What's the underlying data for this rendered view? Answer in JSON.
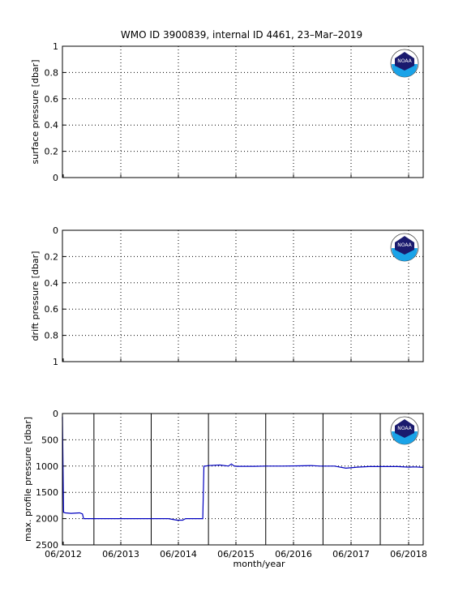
{
  "figure": {
    "title": "WMO ID 3900839, internal ID 4461, 23–Mar–2019",
    "logo_text": "NOAA"
  },
  "colors": {
    "series_line": "#0000c0",
    "axis": "#000000",
    "grid": "#000000",
    "logo_navy": "#1a1a6e",
    "logo_blue": "#1aa3e8"
  },
  "chart_data": [
    {
      "type": "line",
      "ylabel": "surface pressure [dbar]",
      "ylim": [
        0,
        1
      ],
      "y_reversed": false,
      "yticks": [
        0,
        0.2,
        0.4,
        0.6,
        0.8,
        1
      ],
      "ytick_labels": [
        "0",
        "0.2",
        "0.4",
        "0.6",
        "0.8",
        "1"
      ],
      "xticks": [
        "06/2012",
        "06/2013",
        "06/2014",
        "06/2015",
        "06/2016",
        "06/2017",
        "06/2018"
      ],
      "grid": "dotted",
      "series": []
    },
    {
      "type": "line",
      "ylabel": "drift pressure [dbar]",
      "ylim": [
        0,
        1
      ],
      "y_reversed": true,
      "yticks": [
        0,
        0.2,
        0.4,
        0.6,
        0.8,
        1
      ],
      "ytick_labels": [
        "0",
        "0.2",
        "0.4",
        "0.6",
        "0.8",
        "1"
      ],
      "xticks": [
        "06/2012",
        "06/2013",
        "06/2014",
        "06/2015",
        "06/2016",
        "06/2017",
        "06/2018"
      ],
      "grid": "dotted",
      "series": []
    },
    {
      "type": "line",
      "ylabel": "max. profile pressure [dbar]",
      "xlabel": "month/year",
      "ylim": [
        0,
        2500
      ],
      "y_reversed": true,
      "yticks": [
        0,
        500,
        1000,
        1500,
        2000,
        2500
      ],
      "ytick_labels": [
        "0",
        "500",
        "1000",
        "1500",
        "2000",
        "2500"
      ],
      "xlim": [
        2012.45,
        2018.75
      ],
      "xticks": [
        "06/2012",
        "06/2013",
        "06/2014",
        "06/2015",
        "06/2016",
        "06/2017",
        "06/2018"
      ],
      "year_boundaries": [
        2013.0,
        2014.0,
        2015.0,
        2016.0,
        2017.0,
        2018.0
      ],
      "grid": "dotted",
      "series": [
        {
          "x": [
            2012.45,
            2012.47,
            2012.5,
            2012.6,
            2012.75,
            2012.8,
            2012.82,
            2012.9,
            2013.0,
            2013.5,
            2014.0,
            2014.3,
            2014.45,
            2014.55,
            2014.6,
            2014.9,
            2014.92,
            2014.95,
            2015.0,
            2015.2,
            2015.35,
            2015.4,
            2015.45,
            2015.5,
            2015.8,
            2016.0,
            2016.3,
            2016.6,
            2016.8,
            2016.95,
            2017.0,
            2017.2,
            2017.4,
            2017.6,
            2017.8,
            2018.0,
            2018.3,
            2018.5,
            2018.6,
            2018.75
          ],
          "y": [
            60,
            1880,
            1890,
            1900,
            1890,
            1910,
            2000,
            2000,
            2000,
            2000,
            2000,
            2000,
            2030,
            2030,
            2000,
            2000,
            1000,
            1000,
            990,
            980,
            1000,
            960,
            1000,
            1005,
            1005,
            1000,
            1000,
            995,
            990,
            1000,
            1000,
            1000,
            1040,
            1020,
            1010,
            1010,
            1010,
            1020,
            1015,
            1025
          ]
        }
      ]
    }
  ]
}
